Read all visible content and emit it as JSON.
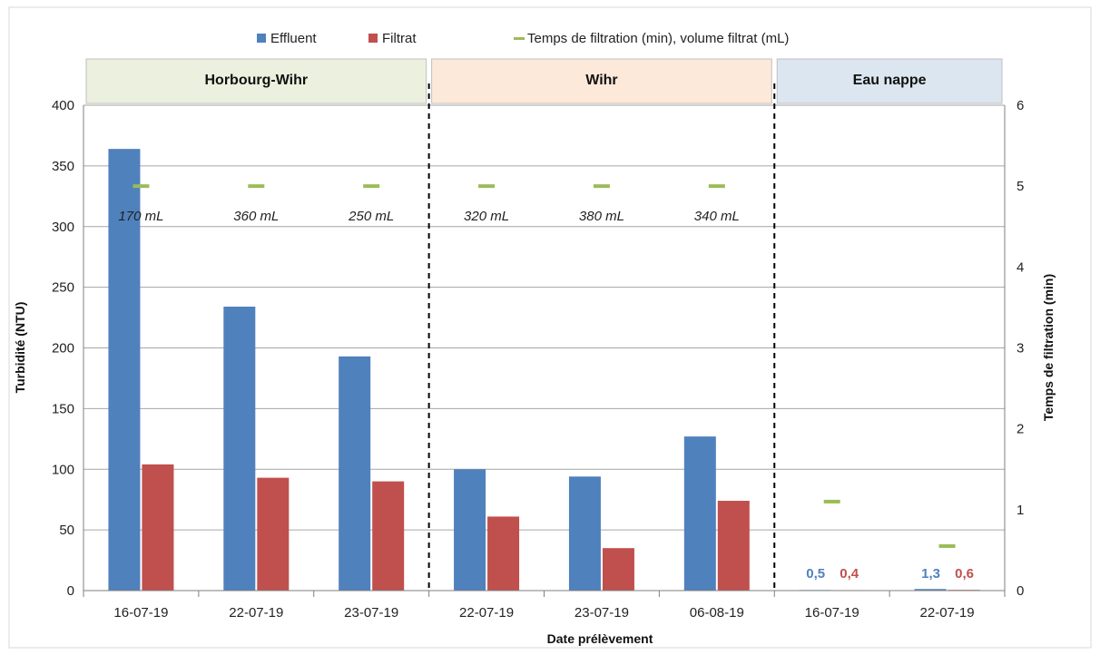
{
  "chart_data": {
    "type": "bar",
    "title": "",
    "xlabel": "Date prélèvement",
    "ylabel": "Turbidité (NTU)",
    "y2label": "Temps de filtration (min)",
    "ylim": [
      0,
      400
    ],
    "y2lim": [
      0,
      6
    ],
    "yticks": [
      "0",
      "50",
      "100",
      "150",
      "200",
      "250",
      "300",
      "350",
      "400"
    ],
    "y2ticks": [
      "0",
      "1",
      "2",
      "3",
      "4",
      "5",
      "6"
    ],
    "categories": [
      "16-07-19",
      "22-07-19",
      "23-07-19",
      "22-07-19",
      "23-07-19",
      "06-08-19",
      "16-07-19",
      "22-07-19"
    ],
    "legend_position": "top",
    "grid": true,
    "groups": [
      {
        "label": "Horbourg-Wihr",
        "start": 0,
        "end": 2,
        "color": "#ebf1de"
      },
      {
        "label": "Wihr",
        "start": 3,
        "end": 5,
        "color": "#fde9d9"
      },
      {
        "label": "Eau nappe",
        "start": 6,
        "end": 7,
        "color": "#dce6f1"
      }
    ],
    "series": [
      {
        "name": "Effluent",
        "type": "bar",
        "axis": "left",
        "color": "#4f81bd",
        "values": [
          364,
          234,
          193,
          100,
          94,
          127,
          0.5,
          1.3
        ]
      },
      {
        "name": "Filtrat",
        "type": "bar",
        "axis": "left",
        "color": "#c0504d",
        "values": [
          104,
          93,
          90,
          61,
          35,
          74,
          0.4,
          0.6
        ]
      },
      {
        "name": "Temps de filtration (min), volume filtrat (mL)",
        "type": "marker",
        "axis": "right",
        "color": "#9bbb59",
        "values": [
          5,
          5,
          5,
          5,
          5,
          5,
          1.1,
          0.55
        ]
      }
    ],
    "volume_labels": [
      "170 mL",
      "360 mL",
      "250 mL",
      "320 mL",
      "380 mL",
      "340 mL"
    ],
    "data_labels": [
      {
        "index": 6,
        "effluent": "0,5",
        "filtrat": "0,4"
      },
      {
        "index": 7,
        "effluent": "1,3",
        "filtrat": "0,6"
      }
    ]
  }
}
